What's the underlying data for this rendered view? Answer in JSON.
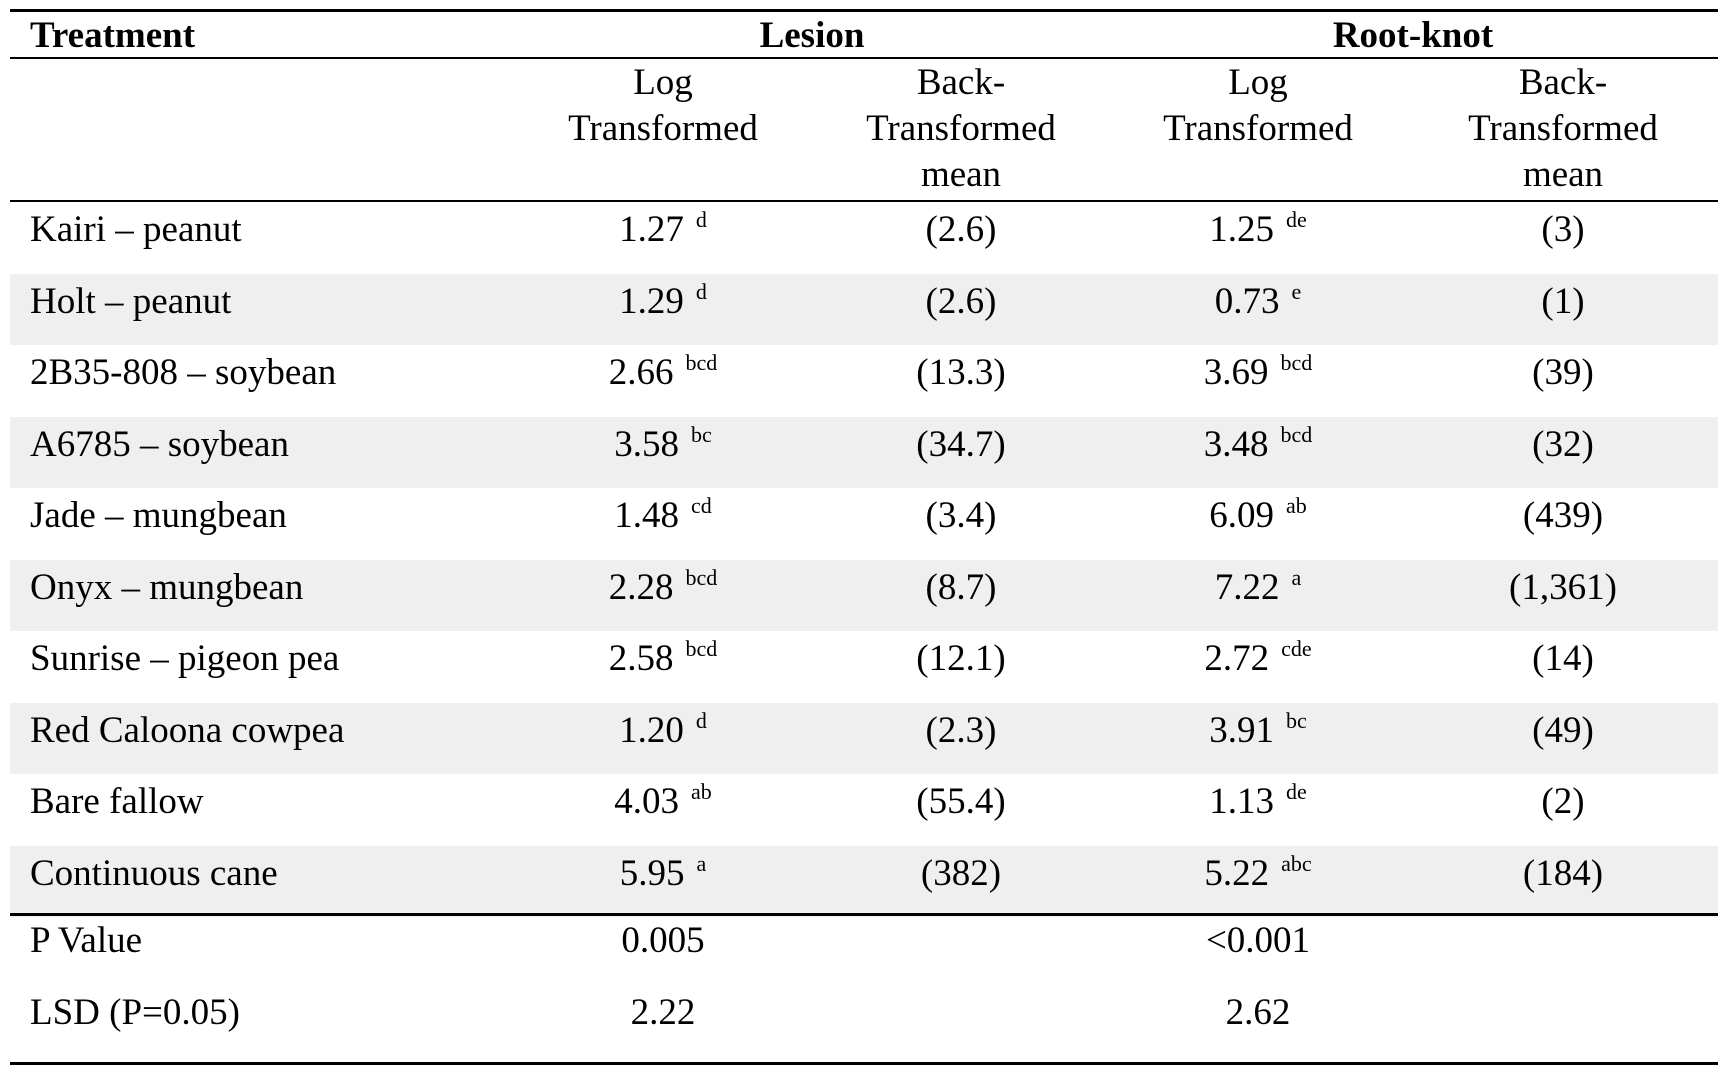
{
  "header": {
    "treatment": "Treatment",
    "lesion": "Lesion",
    "root_knot": "Root-knot",
    "sub": {
      "log_line1": "Log",
      "log_line2": "Transformed",
      "back_line1": "Back-",
      "back_line2": "Transformed",
      "back_line3": "mean"
    }
  },
  "rows": [
    {
      "treatment": "Kairi – peanut",
      "lesion_log": "1.27",
      "lesion_sup": "d",
      "lesion_back": "(2.6)",
      "rk_log": "1.25",
      "rk_sup": "de",
      "rk_back": "(3)"
    },
    {
      "treatment": "Holt – peanut",
      "lesion_log": "1.29",
      "lesion_sup": "d",
      "lesion_back": "(2.6)",
      "rk_log": "0.73",
      "rk_sup": "e",
      "rk_back": "(1)"
    },
    {
      "treatment": "2B35-808 – soybean",
      "lesion_log": "2.66",
      "lesion_sup": "bcd",
      "lesion_back": "(13.3)",
      "rk_log": "3.69",
      "rk_sup": "bcd",
      "rk_back": "(39)"
    },
    {
      "treatment": "A6785 – soybean",
      "lesion_log": "3.58",
      "lesion_sup": "bc",
      "lesion_back": "(34.7)",
      "rk_log": "3.48",
      "rk_sup": "bcd",
      "rk_back": "(32)"
    },
    {
      "treatment": "Jade – mungbean",
      "lesion_log": "1.48",
      "lesion_sup": "cd",
      "lesion_back": "(3.4)",
      "rk_log": "6.09",
      "rk_sup": "ab",
      "rk_back": "(439)"
    },
    {
      "treatment": "Onyx – mungbean",
      "lesion_log": "2.28",
      "lesion_sup": "bcd",
      "lesion_back": "(8.7)",
      "rk_log": "7.22",
      "rk_sup": "a",
      "rk_back": "(1,361)"
    },
    {
      "treatment": "Sunrise – pigeon pea",
      "lesion_log": "2.58",
      "lesion_sup": "bcd",
      "lesion_back": "(12.1)",
      "rk_log": "2.72",
      "rk_sup": "cde",
      "rk_back": "(14)"
    },
    {
      "treatment": "Red Caloona cowpea",
      "lesion_log": "1.20",
      "lesion_sup": "d",
      "lesion_back": "(2.3)",
      "rk_log": "3.91",
      "rk_sup": "bc",
      "rk_back": "(49)"
    },
    {
      "treatment": "Bare fallow",
      "lesion_log": "4.03",
      "lesion_sup": "ab",
      "lesion_back": "(55.4)",
      "rk_log": "1.13",
      "rk_sup": "de",
      "rk_back": "(2)"
    },
    {
      "treatment": "Continuous cane",
      "lesion_log": "5.95",
      "lesion_sup": "a",
      "lesion_back": "(382)",
      "rk_log": "5.22",
      "rk_sup": "abc",
      "rk_back": "(184)"
    }
  ],
  "stats": [
    {
      "label": "P Value",
      "lesion": "0.005",
      "root_knot": "<0.001"
    },
    {
      "label": "LSD (P=0.05)",
      "lesion": "2.22",
      "root_knot": "2.62"
    }
  ],
  "colors": {
    "band": "#efefef",
    "rule": "#000000",
    "text": "#000000"
  }
}
